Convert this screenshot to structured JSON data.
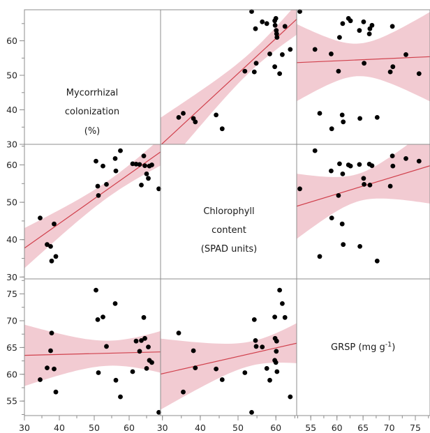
{
  "chart_data": {
    "type": "scatter",
    "variables": [
      {
        "name": "Mycorrhizal colonization (%)",
        "label_lines": [
          "Mycorrhizal",
          "colonization",
          "(%)"
        ],
        "lim": [
          30,
          69
        ]
      },
      {
        "name": "Chlorophyll content (SPAD units)",
        "label_lines": [
          "Chlorophyll",
          "content",
          "(SPAD units)"
        ],
        "lim": [
          29.5,
          65.5
        ]
      },
      {
        "name": "GRSP (mg g-1)",
        "label_lines": [
          "GRSP (mg g",
          "-1",
          ")"
        ],
        "lim": [
          52.3,
          77.8
        ]
      }
    ],
    "axis_ticks": {
      "bottom": [
        {
          "values": [
            30,
            40,
            50,
            60
          ],
          "labels": [
            "30",
            "40",
            "50",
            "60"
          ]
        },
        {
          "values": [
            30,
            40,
            50,
            60
          ],
          "labels": [
            "30",
            "40",
            "50",
            "60"
          ]
        },
        {
          "values": [
            55,
            60,
            65,
            70,
            75
          ],
          "labels": [
            "55",
            "60",
            "65",
            "70",
            "75"
          ]
        }
      ],
      "left": [
        {
          "values": [
            30,
            40,
            50,
            60
          ],
          "labels": [
            "30",
            "40",
            "50",
            "60"
          ]
        },
        {
          "values": [
            30,
            40,
            50,
            60
          ],
          "labels": [
            "30",
            "40",
            "50",
            "60"
          ]
        },
        {
          "values": [
            55,
            60,
            65,
            70,
            75
          ],
          "labels": [
            "55",
            "60",
            "65",
            "70",
            "75"
          ]
        }
      ]
    },
    "observations": [
      {
        "myc": 34.5,
        "chl": 45.8,
        "grsp": 59.0
      },
      {
        "myc": 36.5,
        "chl": 38.7,
        "grsp": 61.2
      },
      {
        "myc": 37.5,
        "chl": 38.2,
        "grsp": 64.4
      },
      {
        "myc": 37.8,
        "chl": 34.3,
        "grsp": 67.7
      },
      {
        "myc": 38.5,
        "chl": 44.2,
        "grsp": 61.0
      },
      {
        "myc": 39.0,
        "chl": 35.5,
        "grsp": 56.7
      },
      {
        "myc": 50.5,
        "chl": 61.0,
        "grsp": 75.7
      },
      {
        "myc": 51.0,
        "chl": 54.3,
        "grsp": 70.2
      },
      {
        "myc": 51.2,
        "chl": 51.8,
        "grsp": 60.3
      },
      {
        "myc": 52.5,
        "chl": 59.7,
        "grsp": 70.7
      },
      {
        "myc": 53.5,
        "chl": 54.8,
        "grsp": 65.2
      },
      {
        "myc": 56.0,
        "chl": 61.7,
        "grsp": 73.2
      },
      {
        "myc": 56.2,
        "chl": 58.4,
        "grsp": 58.9
      },
      {
        "myc": 57.5,
        "chl": 63.8,
        "grsp": 55.8
      },
      {
        "myc": 61.0,
        "chl": 60.3,
        "grsp": 60.5
      },
      {
        "myc": 62.0,
        "chl": 60.2,
        "grsp": 66.2
      },
      {
        "myc": 63.0,
        "chl": 60.1,
        "grsp": 64.3
      },
      {
        "myc": 63.5,
        "chl": 54.6,
        "grsp": 66.3
      },
      {
        "myc": 64.2,
        "chl": 62.4,
        "grsp": 70.6
      },
      {
        "myc": 64.5,
        "chl": 59.8,
        "grsp": 66.7
      },
      {
        "myc": 65.0,
        "chl": 57.6,
        "grsp": 61.1
      },
      {
        "myc": 65.5,
        "chl": 56.4,
        "grsp": 65.1
      },
      {
        "myc": 65.8,
        "chl": 59.7,
        "grsp": 62.6
      },
      {
        "myc": 66.5,
        "chl": 60.0,
        "grsp": 62.2
      },
      {
        "myc": 68.5,
        "chl": 53.6,
        "grsp": 52.9
      }
    ],
    "grid": false,
    "fit": {
      "type": "linear",
      "color": "#d0404c",
      "band_color": "#f2cbd2"
    },
    "point_color": "#000000"
  }
}
